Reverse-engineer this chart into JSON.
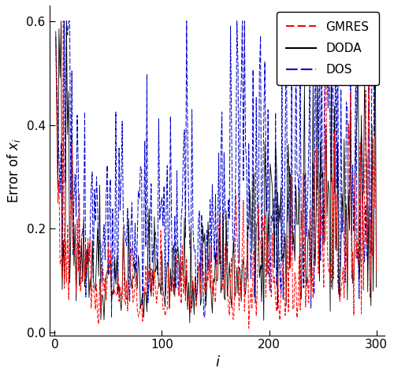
{
  "title": "",
  "xlabel": "i",
  "ylabel": "Error of $x_i$",
  "xlim": [
    -5,
    308
  ],
  "ylim": [
    -0.005,
    0.63
  ],
  "yticks": [
    0.0,
    0.2,
    0.4,
    0.6
  ],
  "xticks": [
    0,
    100,
    200,
    300
  ],
  "n_points": 300,
  "gmres_color": "#ff0000",
  "doda_color": "#000000",
  "dos_color": "#0000cc",
  "gmres_label": "GMRES",
  "doda_label": "DODA",
  "dos_label": "DOS",
  "figwidth": 5.0,
  "figheight": 4.76,
  "dpi": 100
}
